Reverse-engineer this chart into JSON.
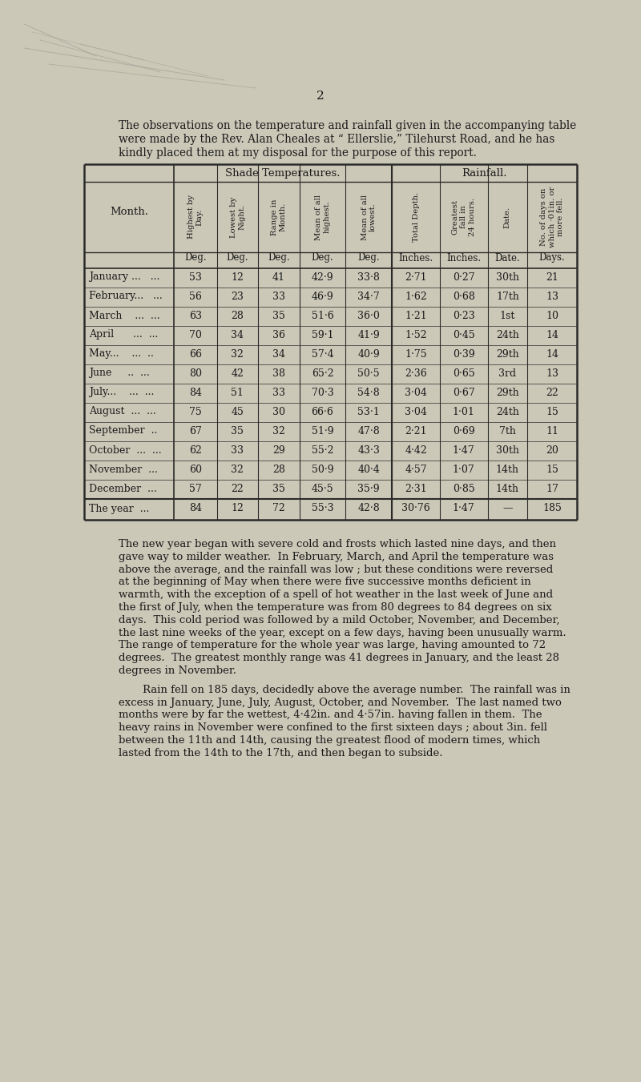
{
  "page_number": "2",
  "bg_color": "#ccc8b8",
  "intro_text_line1": "The observations on the temperature and rainfall given in the accompanying table",
  "intro_text_line2": "were made by the Rev. Alan Cheales at “ Ellerslie,” Tilehurst Road, and he has",
  "intro_text_line3": "kindly placed them at my disposal for the purpose of this report.",
  "col_headers_rotated": [
    "Highest by\nDay.",
    "Lowest by\nNight.",
    "Range in\nMonth.",
    "Mean of all\nhighest.",
    "Mean of all\nlowest.",
    "Total Depth.",
    "Greatest\nfall in\n24 hours.",
    "Date.",
    "No. of days on\nwhich ·01in. or\nmore fell."
  ],
  "col_units": [
    "Deg.",
    "Deg.",
    "Deg.",
    "Deg.",
    "Deg.",
    "Inches.",
    "Inches.",
    "Date.",
    "Days."
  ],
  "months": [
    "January …  …",
    "February…  …",
    "March   …  …",
    "April    …  …",
    "May…   …  …",
    "June    …  …",
    "July…   …  …",
    "August …  …",
    "September  …",
    "October …  …",
    "November  …",
    "December  …",
    "The year  …"
  ],
  "month_display": [
    "January ...  ...",
    "February...  ...",
    "March   ...  ...",
    "April    ...  ...",
    "May...   ...  ...",
    "June    ..  ...",
    "July...   ...  ...",
    "August ...  ...",
    "September  ..",
    "October ...  ...",
    "November  ...",
    "December  ...",
    "The year  ..."
  ],
  "data": [
    [
      53,
      12,
      41,
      "42·9",
      "33·8",
      "2·71",
      "0·27",
      "30th",
      21
    ],
    [
      56,
      23,
      33,
      "46·9",
      "34·7",
      "1·62",
      "0·68",
      "17th",
      13
    ],
    [
      63,
      28,
      35,
      "51·6",
      "36·0",
      "1·21",
      "0·23",
      "1st",
      10
    ],
    [
      70,
      34,
      36,
      "59·1",
      "41·9",
      "1·52",
      "0·45",
      "24th",
      14
    ],
    [
      66,
      32,
      34,
      "57·4",
      "40·9",
      "1·75",
      "0·39",
      "29th",
      14
    ],
    [
      80,
      42,
      38,
      "65·2",
      "50·5",
      "2·36",
      "0·65",
      "3rd",
      13
    ],
    [
      84,
      51,
      33,
      "70·3",
      "54·8",
      "3·04",
      "0·67",
      "29th",
      22
    ],
    [
      75,
      45,
      30,
      "66·6",
      "53·1",
      "3·04",
      "1·01",
      "24th",
      15
    ],
    [
      67,
      35,
      32,
      "51·9",
      "47·8",
      "2·21",
      "0·69",
      "7th",
      11
    ],
    [
      62,
      33,
      29,
      "55·2",
      "43·3",
      "4·42",
      "1·47",
      "30th",
      20
    ],
    [
      60,
      32,
      28,
      "50·9",
      "40·4",
      "4·57",
      "1·07",
      "14th",
      15
    ],
    [
      57,
      22,
      35,
      "45·5",
      "35·9",
      "2·31",
      "0·85",
      "14th",
      17
    ],
    [
      84,
      12,
      72,
      "55·3",
      "42·8",
      "30·76",
      "1·47",
      "—",
      185
    ]
  ],
  "para1": "The new year began with severe cold and frosts which lasted nine days, and then gave way to milder weather.  In February, March, and April the temperature was above the average, and the rainfall was low ; but these conditions were reversed at the beginning of May when there were five successive months deficient in warmth, with the exception of a spell of hot weather in the last week of June and the first of July, when the temperature was from 80 degrees to 84 degrees on six days.  This cold period was followed by a mild October, November, and December, the last nine weeks of the year, except on a few days, having been unusually warm.  The range of temperature for the whole year was large, having amounted to 72 degrees.  The greatest monthly range was 41 degrees in January, and the least 28 degrees in November.",
  "para2": "Rain fell on 185 days, decidedly above the average number.  The rainfall was in excess in January, June, July, August, October, and November.  The last named two months were by far the wettest, 4·42in. and 4·57in. having fallen in them.  The heavy rains in November were confined to the first sixteen days ; about 3in. fell between the 11th and 14th, causing the greatest flood of modern times, which lasted from the 14th to the 17th, and then began to subside.",
  "text_color": "#1a1a1a"
}
